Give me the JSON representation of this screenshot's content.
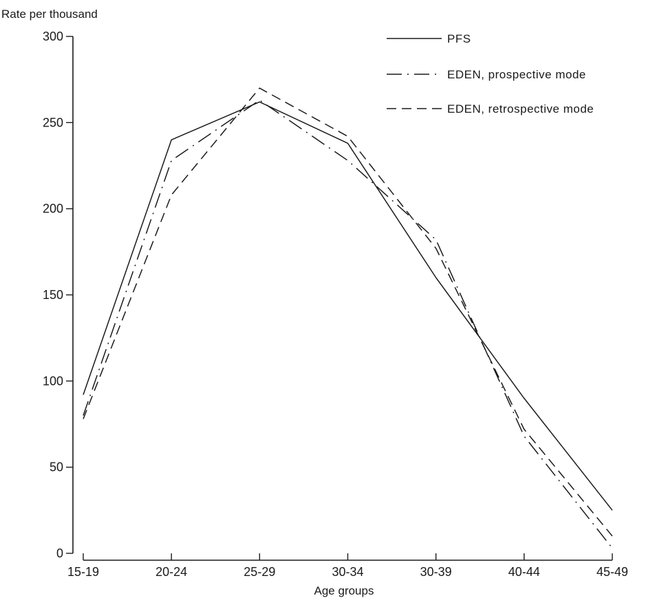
{
  "chart_data": {
    "type": "line",
    "title": "",
    "ylabel": "Rate per thousand",
    "xlabel": "Age groups",
    "ylim": [
      0,
      300
    ],
    "yticks": [
      0,
      50,
      100,
      150,
      200,
      250,
      300
    ],
    "categories": [
      "15-19",
      "20-24",
      "25-29",
      "30-34",
      "30-39",
      "40-44",
      "45-49"
    ],
    "grid": false,
    "legend_position": "top-right",
    "series": [
      {
        "name": "PFS",
        "style": "solid",
        "color": "#1a1a1a",
        "values": [
          92,
          240,
          262,
          238,
          160,
          90,
          25
        ]
      },
      {
        "name": "EDEN, prospective mode",
        "style": "dashdot",
        "color": "#1a1a1a",
        "values": [
          80,
          228,
          263,
          228,
          182,
          68,
          3
        ]
      },
      {
        "name": "EDEN, retrospective mode",
        "style": "dashed",
        "color": "#1a1a1a",
        "values": [
          78,
          208,
          270,
          242,
          177,
          72,
          10
        ]
      }
    ]
  }
}
